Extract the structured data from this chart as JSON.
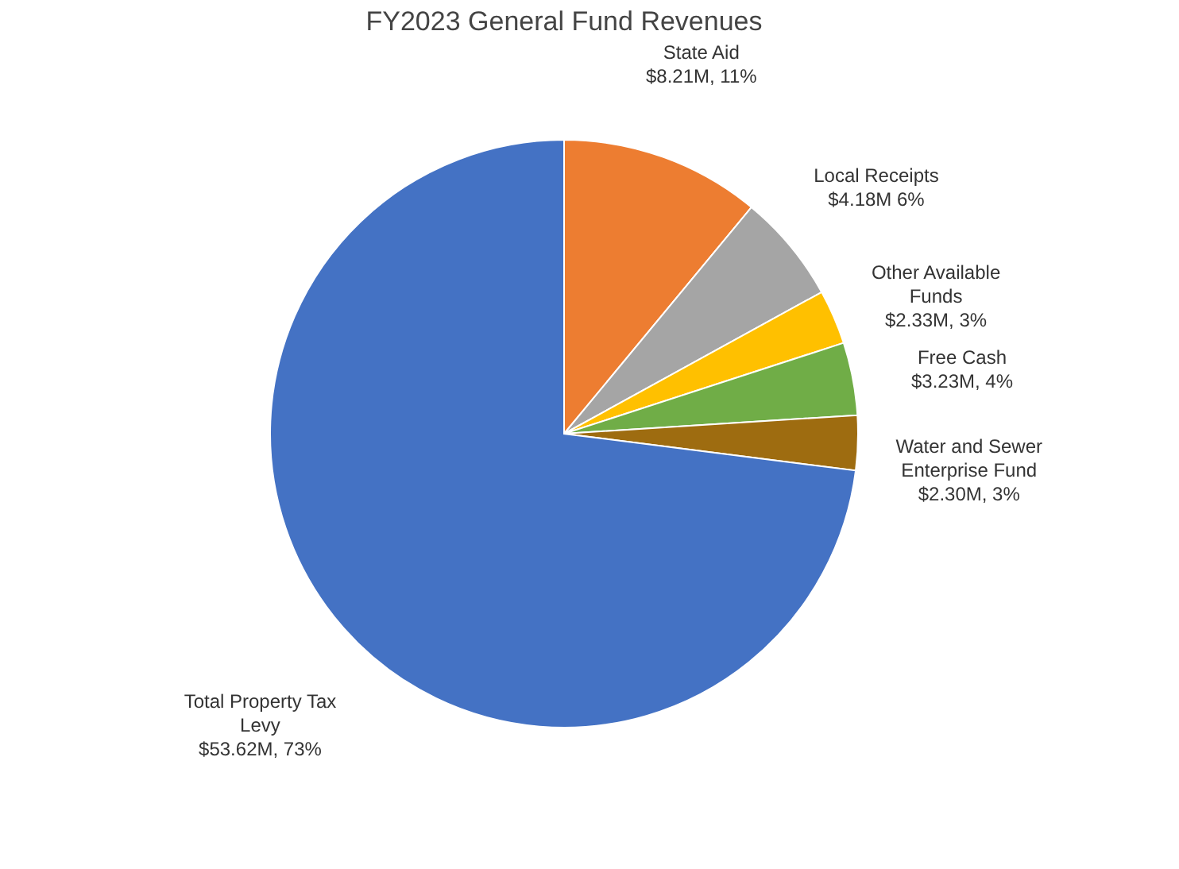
{
  "chart_data": {
    "type": "pie",
    "title": "FY2023 General Fund Revenues",
    "categories": [
      "State Aid",
      "Local Receipts",
      "Other Available Funds",
      "Free Cash",
      "Water and Sewer Enterprise Fund",
      "Total Property Tax Levy"
    ],
    "values": [
      11,
      6,
      3,
      4,
      3,
      73
    ],
    "value_labels": [
      "$8.21M, 11%",
      "$4.18M 6%",
      "$2.33M, 3%",
      "$3.23M, 4%",
      "$2.30M, 3%",
      "$53.62M, 73%"
    ],
    "colors": [
      "#ed7d31",
      "#a5a5a5",
      "#ffc000",
      "#70ad47",
      "#9e6c10",
      "#4472c4"
    ],
    "legend": false
  }
}
